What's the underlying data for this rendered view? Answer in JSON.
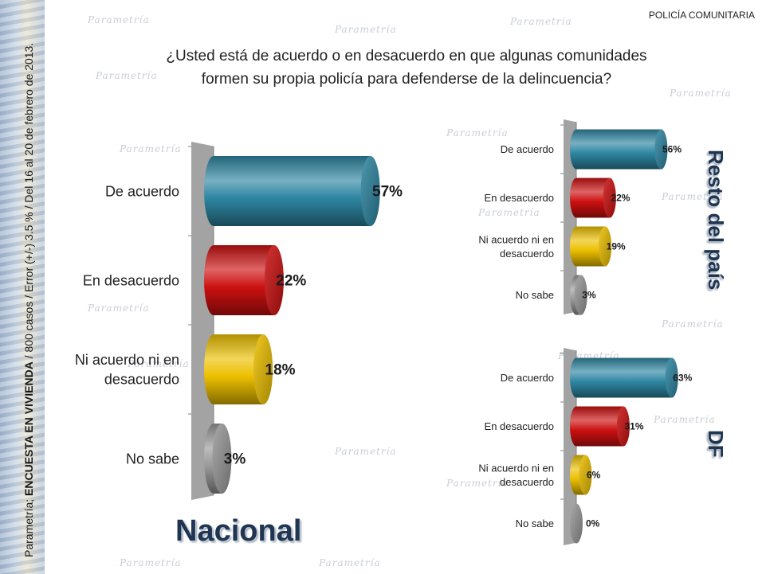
{
  "header": {
    "tag": "POLICÍA COMUNITARIA"
  },
  "source_note": {
    "prefix": "Parametría; ",
    "emphasis": "ENCUESTA EN VIVIENDA",
    "suffix": " / 800 casos / Error (+/-) 3.5 % / Del 16 al 20 de febrero de 2013."
  },
  "question": {
    "line1": "¿Usted está de acuerdo o en desacuerdo en que algunas comunidades",
    "line2": "formen su propia policía para defenderse de la delincuencia?"
  },
  "regions": {
    "nacional": "Nacional",
    "resto": "Resto del país",
    "df": "DF"
  },
  "watermark_text": "Parametría",
  "colors": {
    "de_acuerdo": "#2e86a2",
    "en_desacuerdo": "#cc1010",
    "ni_acuerdo": "#ecc000",
    "no_sabe": "#9a9a9a",
    "wall": "#a3a3a3",
    "title": "#1f3552"
  },
  "chart_data": [
    {
      "type": "bar",
      "orientation": "horizontal",
      "style": "3d-cylinder",
      "title": "Nacional",
      "categories": [
        "De acuerdo",
        "En desacuerdo",
        "Ni acuerdo ni en desacuerdo",
        "No sabe"
      ],
      "values": [
        57,
        22,
        18,
        3
      ],
      "value_labels": [
        "57%",
        "22%",
        "18%",
        "3%"
      ],
      "unit": "%"
    },
    {
      "type": "bar",
      "orientation": "horizontal",
      "style": "3d-cylinder",
      "title": "Resto del país",
      "categories": [
        "De acuerdo",
        "En desacuerdo",
        "Ni acuerdo ni en desacuerdo",
        "No sabe"
      ],
      "values": [
        56,
        22,
        19,
        3
      ],
      "value_labels": [
        "56%",
        "22%",
        "19%",
        "3%"
      ],
      "unit": "%"
    },
    {
      "type": "bar",
      "orientation": "horizontal",
      "style": "3d-cylinder",
      "title": "DF",
      "categories": [
        "De acuerdo",
        "En desacuerdo",
        "Ni acuerdo ni en desacuerdo",
        "No sabe"
      ],
      "values": [
        63,
        31,
        6,
        0
      ],
      "value_labels": [
        "63%",
        "31%",
        "6%",
        "0%"
      ],
      "unit": "%"
    }
  ]
}
